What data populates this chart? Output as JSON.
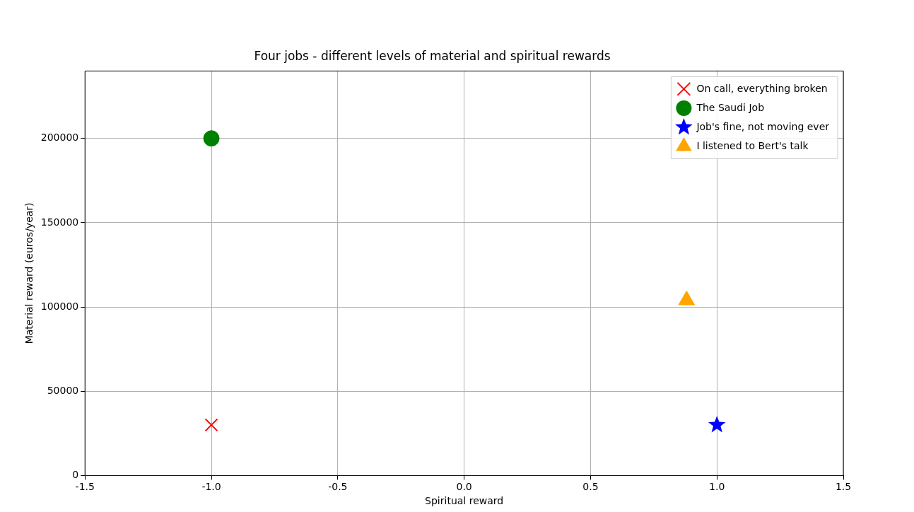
{
  "chart_data": {
    "type": "scatter",
    "title": "Four jobs - different levels of material and spiritual rewards",
    "xlabel": "Spiritual reward",
    "ylabel": "Material reward (euros/year)",
    "xlim": [
      -1.5,
      1.5
    ],
    "xticks": [
      {
        "value": -1.5,
        "label": "-1.5"
      },
      {
        "value": -1,
        "label": "-1.0"
      },
      {
        "value": -0.5,
        "label": "-0.5"
      },
      {
        "value": 0,
        "label": "0.0"
      },
      {
        "value": 0.5,
        "label": "0.5"
      },
      {
        "value": 1,
        "label": "1.0"
      },
      {
        "value": 1.5,
        "label": "1.5"
      }
    ],
    "ylim": [
      0,
      240000
    ],
    "yticks": [
      0,
      50000,
      100000,
      150000,
      200000
    ],
    "grid": true,
    "legend": "top right",
    "series": [
      {
        "name": "On call, everything broken",
        "color": "#ff0000",
        "marker": "cross",
        "x": [
          -1
        ],
        "values": [
          30000
        ]
      },
      {
        "name": "The Saudi Job",
        "color": "#008000",
        "marker": "circle",
        "x": [
          -1
        ],
        "values": [
          200000
        ]
      },
      {
        "name": "Job's fine, not moving ever",
        "color": "#0000ff",
        "marker": "star",
        "x": [
          1
        ],
        "values": [
          30000
        ]
      },
      {
        "name": "I listened to Bert's talk",
        "color": "#ffa500",
        "marker": "triangle",
        "x": [
          0.88
        ],
        "values": [
          104000
        ]
      }
    ]
  }
}
